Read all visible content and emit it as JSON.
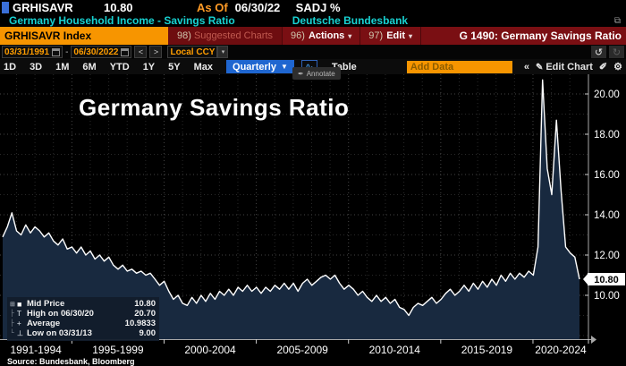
{
  "header": {
    "ticker": "GRHISAVR",
    "last_price": "10.80",
    "as_of_label": "As Of",
    "as_of_date": "06/30/22",
    "adjustment": "SADJ %",
    "description": "Germany Household Income - Savings Ratio",
    "provider": "Deutsche Bundesbank"
  },
  "toolbar": {
    "security_field": "GRHISAVR Index",
    "suggested_charts_num": "98)",
    "suggested_charts_label": "Suggested Charts",
    "actions_num": "96)",
    "actions_label": "Actions",
    "edit_num": "97)",
    "edit_label": "Edit",
    "function_title": "G 1490: Germany Savings Ratio"
  },
  "controls": {
    "date_from": "03/31/1991",
    "date_to": "06/30/2022",
    "prev_label": "<",
    "next_label": ">",
    "currency": "Local CCY",
    "periods": {
      "p1": "1D",
      "p2": "3D",
      "p3": "1M",
      "p4": "6M",
      "p5": "YTD",
      "p6": "1Y",
      "p7": "5Y",
      "p8": "Max"
    },
    "frequency": "Quarterly",
    "table_label": "Table",
    "add_data_placeholder": "Add Data",
    "collapse_label": "«",
    "edit_chart_label": "Edit Chart",
    "annotate_label": "Annotate",
    "undo_glyph": "↺",
    "redo_glyph": "↻"
  },
  "chart": {
    "title": "Germany Savings Ratio",
    "source_note": "Source: Bundesbank, Bloomberg",
    "last_badge": "10.80",
    "legend": [
      {
        "glyph": "■",
        "label": "Mid Price",
        "value": "10.80"
      },
      {
        "glyph": "T",
        "label": "High on 06/30/20",
        "value": "20.70"
      },
      {
        "glyph": "+",
        "label": "Average",
        "value": "10.9833"
      },
      {
        "glyph": "⊥",
        "label": "Low on 03/31/13",
        "value": "9.00"
      }
    ]
  },
  "chart_data": {
    "type": "area",
    "title": "Germany Savings Ratio",
    "frequency": "quarterly",
    "x_start": "1991-03-31",
    "x_end": "2022-06-30",
    "x_tick_labels": [
      "1991-1994",
      "1995-1999",
      "2000-2004",
      "2005-2009",
      "2010-2014",
      "2015-2019",
      "2020-2024"
    ],
    "y_ticks": [
      10,
      12,
      14,
      16,
      18,
      20
    ],
    "ylim": [
      7.8,
      21.0
    ],
    "high": {
      "date": "06/30/20",
      "value": 20.7
    },
    "low": {
      "date": "03/31/13",
      "value": 9.0
    },
    "average": 10.9833,
    "last": 10.8,
    "values": [
      12.9,
      13.4,
      14.1,
      13.2,
      13.0,
      13.5,
      13.1,
      13.4,
      13.2,
      12.9,
      13.1,
      12.7,
      12.5,
      12.8,
      12.3,
      12.4,
      12.1,
      12.4,
      12.0,
      12.2,
      11.8,
      12.0,
      11.7,
      11.9,
      11.5,
      11.3,
      11.5,
      11.2,
      11.3,
      11.1,
      11.2,
      11.0,
      11.1,
      10.8,
      10.5,
      10.7,
      10.2,
      9.8,
      10.0,
      9.6,
      9.5,
      9.9,
      9.6,
      10.0,
      9.7,
      10.1,
      9.8,
      10.2,
      10.0,
      10.3,
      10.0,
      10.4,
      10.2,
      10.5,
      10.2,
      10.4,
      10.1,
      10.4,
      10.2,
      10.5,
      10.3,
      10.6,
      10.3,
      10.6,
      10.2,
      10.6,
      10.8,
      10.5,
      10.7,
      10.9,
      11.0,
      10.8,
      11.0,
      10.6,
      10.3,
      10.5,
      10.3,
      10.0,
      10.2,
      9.9,
      9.7,
      10.0,
      9.7,
      9.9,
      9.6,
      9.8,
      9.4,
      9.3,
      9.0,
      9.4,
      9.6,
      9.5,
      9.7,
      9.9,
      9.6,
      9.8,
      10.1,
      10.3,
      10.0,
      10.2,
      10.5,
      10.2,
      10.6,
      10.3,
      10.7,
      10.4,
      10.8,
      10.5,
      11.0,
      10.7,
      11.1,
      10.8,
      11.1,
      10.9,
      11.2,
      11.0,
      12.4,
      20.7,
      16.3,
      15.0,
      18.7,
      15.2,
      12.4,
      12.1,
      11.9,
      10.8
    ],
    "line_color": "#ffffff",
    "fill_color": "#18293f",
    "background": "#000000"
  },
  "colors": {
    "accent_orange": "#f79500",
    "command_red": "#7a0f13",
    "info_cyan": "#18d2d2",
    "frequency_blue": "#1f66d0"
  }
}
